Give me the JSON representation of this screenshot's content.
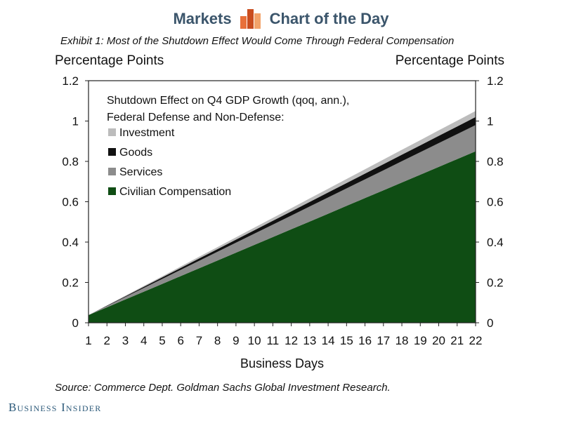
{
  "header": {
    "left_brand": "Markets",
    "right_brand": "Chart of the Day",
    "logo_colors": [
      "#e8703a",
      "#c94d1f",
      "#f2a36a"
    ]
  },
  "exhibit_title": "Exhibit 1: Most of the Shutdown Effect Would Come Through Federal Compensation",
  "source": "Source: Commerce Dept. Goldman Sachs Global Investment Research.",
  "publisher": "Business Insider",
  "chart_data": {
    "type": "area",
    "stacked": true,
    "left_axis_title": "Percentage Points",
    "right_axis_title": "Percentage Points",
    "xlabel": "Business Days",
    "ylim": [
      0,
      1.2
    ],
    "yticks": [
      "0",
      "0.2",
      "0.4",
      "0.6",
      "0.8",
      "1",
      "1.2"
    ],
    "yticks_right": [
      "0",
      "0.2",
      "0.4",
      "0.6",
      "0.8",
      "1",
      "1.2"
    ],
    "x": [
      1,
      2,
      3,
      4,
      5,
      6,
      7,
      8,
      9,
      10,
      11,
      12,
      13,
      14,
      15,
      16,
      17,
      18,
      19,
      20,
      21,
      22
    ],
    "legend_title_line1": "Shutdown Effect on Q4 GDP Growth (qoq, ann.),",
    "legend_title_line2": "Federal Defense and Non-Defense:",
    "series": [
      {
        "name": "Civilian Compensation",
        "color": "#0f4d14",
        "start": 0.038,
        "end": 0.85
      },
      {
        "name": "Services",
        "color": "#8c8c8c",
        "start": 0.0,
        "end": 0.13
      },
      {
        "name": "Goods",
        "color": "#111111",
        "start": 0.0,
        "end": 0.04
      },
      {
        "name": "Investment",
        "color": "#bcbcbc",
        "start": 0.0,
        "end": 0.03
      }
    ],
    "legend_order": [
      "Investment",
      "Goods",
      "Services",
      "Civilian Compensation"
    ]
  }
}
